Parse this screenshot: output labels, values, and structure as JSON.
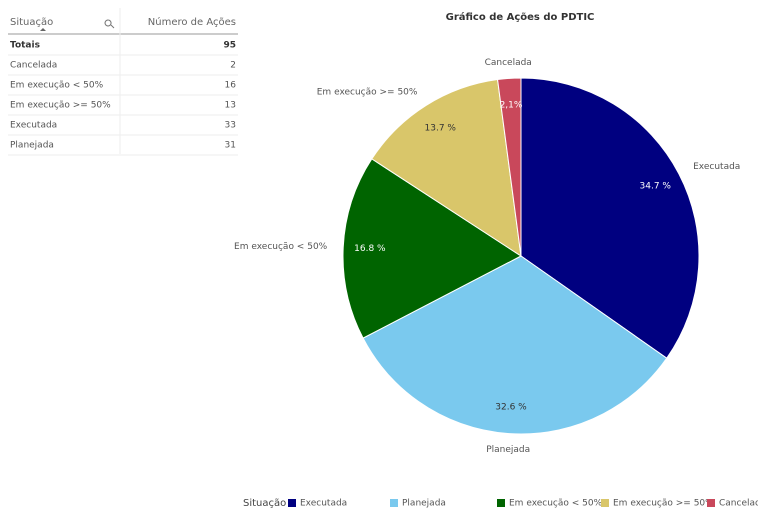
{
  "table": {
    "header": [
      "Situação",
      "Número de Ações"
    ],
    "totals": [
      "Totais",
      95
    ],
    "rows": [
      [
        "Cancelada",
        2
      ],
      [
        "Em execução < 50%",
        16
      ],
      [
        "Em execução >= 50%",
        13
      ],
      [
        "Executada",
        33
      ],
      [
        "Planejada",
        31
      ]
    ]
  },
  "chart_data": {
    "type": "pie",
    "title": "Gráfico de Ações do PDTIC",
    "categories": [
      "Executada",
      "Planejada",
      "Em execução < 50%",
      "Em execução >= 50%",
      "Cancelada"
    ],
    "values": [
      34.7,
      32.6,
      16.8,
      13.7,
      2.1
    ],
    "value_labels": [
      "34.7 %",
      "32.6 %",
      "16.8 %",
      "13.7 %",
      "2,1%"
    ],
    "colors": [
      "#000080",
      "#7ac9ee",
      "#006400",
      "#d9c66a",
      "#c9485b"
    ],
    "legend_title": "Situação",
    "legend": "bottom"
  }
}
